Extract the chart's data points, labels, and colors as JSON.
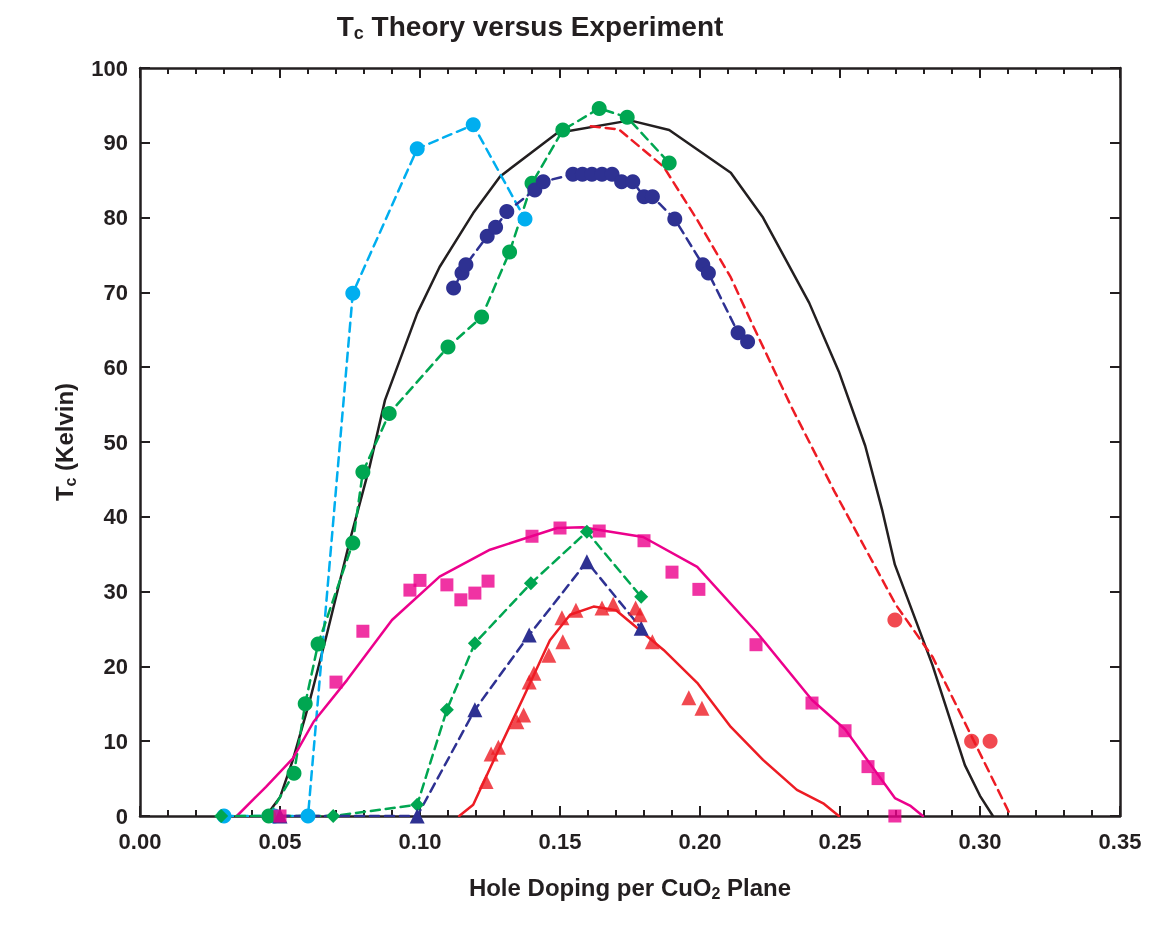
{
  "chart_data": {
    "type": "line",
    "title": "T$_{c}$ Theory versus Experiment",
    "xlabel": "Hole Doping per CuO$_{2}$ Plane",
    "ylabel": "T$_{c}$ (Kelvin)",
    "xlim": [
      0,
      0.35
    ],
    "xticks": [
      {
        "value": 0,
        "label": "0.00"
      },
      {
        "value": 0.05,
        "label": "0.05"
      },
      {
        "value": 0.1,
        "label": "0.10"
      },
      {
        "value": 0.15,
        "label": "0.15"
      },
      {
        "value": 0.2,
        "label": "0.20"
      },
      {
        "value": 0.25,
        "label": "0.25"
      },
      {
        "value": 0.3,
        "label": "0.30"
      },
      {
        "value": 0.35,
        "label": "0.35"
      }
    ],
    "ylim": [
      0,
      100
    ],
    "yticks": [
      0,
      10,
      20,
      30,
      40,
      50,
      60,
      70,
      80,
      90,
      100
    ],
    "grid": false,
    "series": [
      {
        "color": "#231f20",
        "marker": "none",
        "line_style": "solid",
        "x": [
          0.045,
          0.05,
          0.0546,
          0.0607,
          0.0668,
          0.075,
          0.082,
          0.0875,
          0.099,
          0.107,
          0.119,
          0.1286,
          0.149,
          0.175,
          0.189,
          0.211,
          0.2225,
          0.239,
          0.2496,
          0.259,
          0.265,
          0.2696,
          0.283,
          0.2946,
          0.3,
          0.3046
        ],
        "values": [
          0,
          2.5,
          7.5,
          15.5,
          24.4,
          36.9,
          46.7,
          55.6,
          67.2,
          73.4,
          80.6,
          85.5,
          91.3,
          93,
          91.7,
          86,
          80,
          68.6,
          59.4,
          49.5,
          41,
          33.6,
          20.2,
          6.8,
          2.7,
          0
        ]
      },
      {
        "color": "#ed1c24",
        "marker": "none",
        "line_style": "dashed",
        "x": [
          0.161,
          0.171,
          0.187,
          0.199,
          0.211,
          0.218,
          0.2325,
          0.248,
          0.27,
          0.283,
          0.296,
          0.311
        ],
        "values": [
          92.2,
          91.8,
          86.8,
          79.7,
          72,
          66.3,
          54.8,
          43.4,
          28.2,
          21.3,
          11.4,
          0
        ]
      },
      {
        "color": "#00aeef",
        "marker": "circle",
        "line_style": "dashed",
        "x": [
          0.03,
          0.048,
          0.06,
          0.076,
          0.099,
          0.119,
          0.1375
        ],
        "values": [
          0,
          0,
          0,
          69.9,
          89.2,
          92.4,
          79.8
        ]
      },
      {
        "color": "#00a651",
        "marker": "circle",
        "line_style": "dashed",
        "x": [
          0.046,
          0.055,
          0.059,
          0.0636,
          0.076,
          0.0796,
          0.089,
          0.11,
          0.122,
          0.132,
          0.14,
          0.151,
          0.164,
          0.174,
          0.189
        ],
        "values": [
          0,
          5.7,
          15,
          23,
          36.5,
          46,
          53.8,
          62.7,
          66.7,
          75.4,
          84.6,
          91.7,
          94.6,
          93.4,
          87.3
        ]
      },
      {
        "color": "#2e3192",
        "marker": "circle",
        "line_style": "dashed",
        "x": [
          0.112,
          0.115,
          0.1164,
          0.124,
          0.127,
          0.131,
          0.141,
          0.144,
          0.1546,
          0.158,
          0.1614,
          0.165,
          0.1686,
          0.172,
          0.176,
          0.18,
          0.183,
          0.191,
          0.201,
          0.203,
          0.2136,
          0.217
        ],
        "values": [
          70.6,
          72.6,
          73.7,
          77.5,
          78.7,
          80.8,
          83.7,
          84.8,
          85.8,
          85.8,
          85.8,
          85.8,
          85.8,
          84.8,
          84.8,
          82.8,
          82.8,
          79.8,
          73.7,
          72.6,
          64.6,
          63.4
        ]
      },
      {
        "type": "scatter",
        "color": "#ed1c24",
        "marker": "circle",
        "x": [
          0.2696,
          0.297,
          0.3036
        ],
        "values": [
          26.2,
          10,
          10
        ]
      },
      {
        "color": "#ec008c",
        "marker": "none",
        "line_style": "solid",
        "x": [
          0.0346,
          0.045,
          0.0546,
          0.062,
          0.074,
          0.09,
          0.107,
          0.125,
          0.149,
          0.158,
          0.1797,
          0.199,
          0.2204,
          0.24,
          0.2518,
          0.2696,
          0.275,
          0.2796
        ],
        "values": [
          0,
          3.9,
          7.7,
          12.6,
          18.2,
          26.2,
          32,
          35.6,
          38.5,
          38.6,
          37.3,
          33.3,
          24.5,
          15.5,
          11.6,
          2.4,
          1.4,
          0
        ]
      },
      {
        "type": "scatter",
        "color": "#ec008c",
        "marker": "square",
        "x": [
          0.05,
          0.07,
          0.0796,
          0.0964,
          0.1,
          0.1096,
          0.1146,
          0.1196,
          0.1243,
          0.14,
          0.15,
          0.164,
          0.18,
          0.19,
          0.1996,
          0.22,
          0.24,
          0.2518,
          0.26,
          0.2636,
          0.2696
        ],
        "values": [
          0,
          17.9,
          24.7,
          30.2,
          31.5,
          30.9,
          28.9,
          29.8,
          31.4,
          37.4,
          38.5,
          38.1,
          36.8,
          32.6,
          30.3,
          22.9,
          15.1,
          11.4,
          6.6,
          5,
          0
        ]
      },
      {
        "color": "#00a651",
        "marker": "diamond",
        "line_style": "dashed",
        "x": [
          0.029,
          0.069,
          0.099,
          0.1096,
          0.1196,
          0.1396,
          0.1596,
          0.179
        ],
        "values": [
          0,
          0,
          1.5,
          14.2,
          23.1,
          31.1,
          38,
          29.3
        ]
      },
      {
        "color": "#2e3192",
        "marker": "triangle",
        "line_style": "dashed",
        "x": [
          0.05,
          0.099,
          0.1196,
          0.139,
          0.1596,
          0.179
        ],
        "values": [
          0,
          0,
          14.2,
          24.2,
          34,
          25.1
        ]
      },
      {
        "color": "#ed1c24",
        "marker": "none",
        "line_style": "solid",
        "x": [
          0.114,
          0.119,
          0.1275,
          0.137,
          0.1464,
          0.1536,
          0.162,
          0.17,
          0.187,
          0.199,
          0.211,
          0.2225,
          0.2346,
          0.244,
          0.2496
        ],
        "values": [
          0,
          1.5,
          8.4,
          15.9,
          23.5,
          26.9,
          28,
          27.5,
          22.2,
          17.8,
          11.9,
          7.5,
          3.5,
          1.7,
          0
        ]
      },
      {
        "type": "scatter",
        "color": "#ed1c24",
        "marker": "triangle",
        "x": [
          0.1236,
          0.1254,
          0.128,
          0.1346,
          0.137,
          0.139,
          0.1407,
          0.146,
          0.151,
          0.1507,
          0.1557,
          0.165,
          0.169,
          0.177,
          0.1786,
          0.183,
          0.196,
          0.2007
        ],
        "values": [
          4.6,
          8.3,
          9.2,
          12.6,
          13.5,
          17.9,
          19.1,
          21.5,
          23.3,
          26.5,
          27.5,
          27.8,
          28.3,
          27.8,
          26.9,
          23.3,
          15.8,
          14.4
        ]
      }
    ]
  }
}
